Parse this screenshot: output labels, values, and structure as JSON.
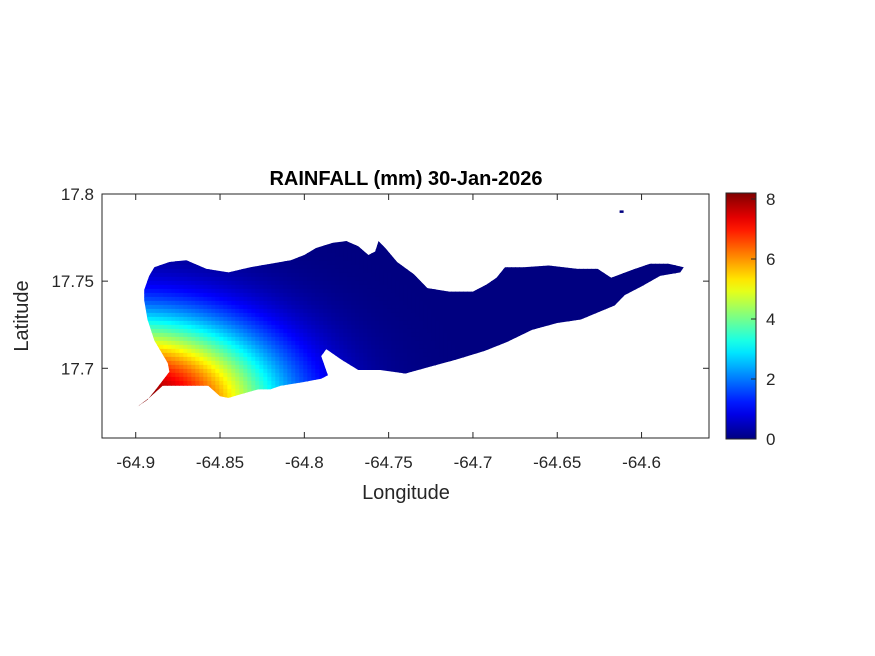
{
  "chart_data": {
    "type": "heatmap",
    "title": "RAINFALL (mm) 30-Jan-2026",
    "xlabel": "Longitude",
    "ylabel": "Latitude",
    "xlim": [
      -64.92,
      -64.56
    ],
    "ylim": [
      17.66,
      17.8
    ],
    "x_ticks": [
      -64.9,
      -64.85,
      -64.8,
      -64.75,
      -64.7,
      -64.65,
      -64.6
    ],
    "x_tick_labels": [
      "-64.9",
      "-64.85",
      "-64.8",
      "-64.75",
      "-64.7",
      "-64.65",
      "-64.6"
    ],
    "y_ticks": [
      17.7,
      17.75,
      17.8
    ],
    "y_tick_labels": [
      "17.7",
      "17.75",
      "17.8"
    ],
    "grid": false,
    "colormap": "jet",
    "colorbar": {
      "range": [
        0,
        8.2
      ],
      "ticks": [
        0,
        2,
        4,
        6,
        8
      ],
      "tick_labels": [
        "0",
        "2",
        "4",
        "6",
        "8"
      ],
      "placement": "right"
    },
    "field": {
      "description_units": "mm",
      "max_value_location": [
        -64.9,
        17.68
      ],
      "max_value": 8.2,
      "min_value": 0
    },
    "island_outline": [
      [
        -64.899,
        17.678
      ],
      [
        -64.893,
        17.682
      ],
      [
        -64.888,
        17.688
      ],
      [
        -64.884,
        17.693
      ],
      [
        -64.88,
        17.698
      ],
      [
        -64.881,
        17.703
      ],
      [
        -64.889,
        17.716
      ],
      [
        -64.893,
        17.728
      ],
      [
        -64.895,
        17.739
      ],
      [
        -64.895,
        17.745
      ],
      [
        -64.892,
        17.753
      ],
      [
        -64.889,
        17.758
      ],
      [
        -64.88,
        17.761
      ],
      [
        -64.87,
        17.762
      ],
      [
        -64.858,
        17.757
      ],
      [
        -64.845,
        17.755
      ],
      [
        -64.832,
        17.758
      ],
      [
        -64.82,
        17.76
      ],
      [
        -64.808,
        17.762
      ],
      [
        -64.8,
        17.765
      ],
      [
        -64.793,
        17.769
      ],
      [
        -64.783,
        17.772
      ],
      [
        -64.775,
        17.773
      ],
      [
        -64.768,
        17.77
      ],
      [
        -64.762,
        17.765
      ],
      [
        -64.758,
        17.767
      ],
      [
        -64.756,
        17.773
      ],
      [
        -64.752,
        17.769
      ],
      [
        -64.745,
        17.761
      ],
      [
        -64.735,
        17.754
      ],
      [
        -64.727,
        17.746
      ],
      [
        -64.714,
        17.744
      ],
      [
        -64.7,
        17.744
      ],
      [
        -64.692,
        17.748
      ],
      [
        -64.686,
        17.752
      ],
      [
        -64.681,
        17.758
      ],
      [
        -64.67,
        17.758
      ],
      [
        -64.655,
        17.759
      ],
      [
        -64.638,
        17.757
      ],
      [
        -64.626,
        17.757
      ],
      [
        -64.618,
        17.752
      ],
      [
        -64.607,
        17.756
      ],
      [
        -64.595,
        17.76
      ],
      [
        -64.584,
        17.76
      ],
      [
        -64.575,
        17.758
      ],
      [
        -64.577,
        17.755
      ],
      [
        -64.589,
        17.753
      ],
      [
        -64.6,
        17.747
      ],
      [
        -64.61,
        17.742
      ],
      [
        -64.616,
        17.736
      ],
      [
        -64.626,
        17.732
      ],
      [
        -64.636,
        17.728
      ],
      [
        -64.65,
        17.726
      ],
      [
        -64.665,
        17.722
      ],
      [
        -64.68,
        17.715
      ],
      [
        -64.693,
        17.71
      ],
      [
        -64.71,
        17.705
      ],
      [
        -64.725,
        17.701
      ],
      [
        -64.74,
        17.697
      ],
      [
        -64.755,
        17.699
      ],
      [
        -64.768,
        17.699
      ],
      [
        -64.778,
        17.705
      ],
      [
        -64.787,
        17.711
      ],
      [
        -64.79,
        17.707
      ],
      [
        -64.786,
        17.696
      ],
      [
        -64.79,
        17.694
      ],
      [
        -64.801,
        17.692
      ],
      [
        -64.814,
        17.69
      ],
      [
        -64.82,
        17.688
      ],
      [
        -64.827,
        17.688
      ],
      [
        -64.838,
        17.685
      ],
      [
        -64.845,
        17.683
      ],
      [
        -64.85,
        17.684
      ],
      [
        -64.857,
        17.69
      ],
      [
        -64.864,
        17.69
      ],
      [
        -64.876,
        17.69
      ],
      [
        -64.884,
        17.69
      ],
      [
        -64.892,
        17.683
      ],
      [
        -64.899,
        17.678
      ]
    ],
    "islets": [
      [
        -64.613,
        17.79
      ],
      [
        -64.611,
        17.789
      ]
    ]
  }
}
